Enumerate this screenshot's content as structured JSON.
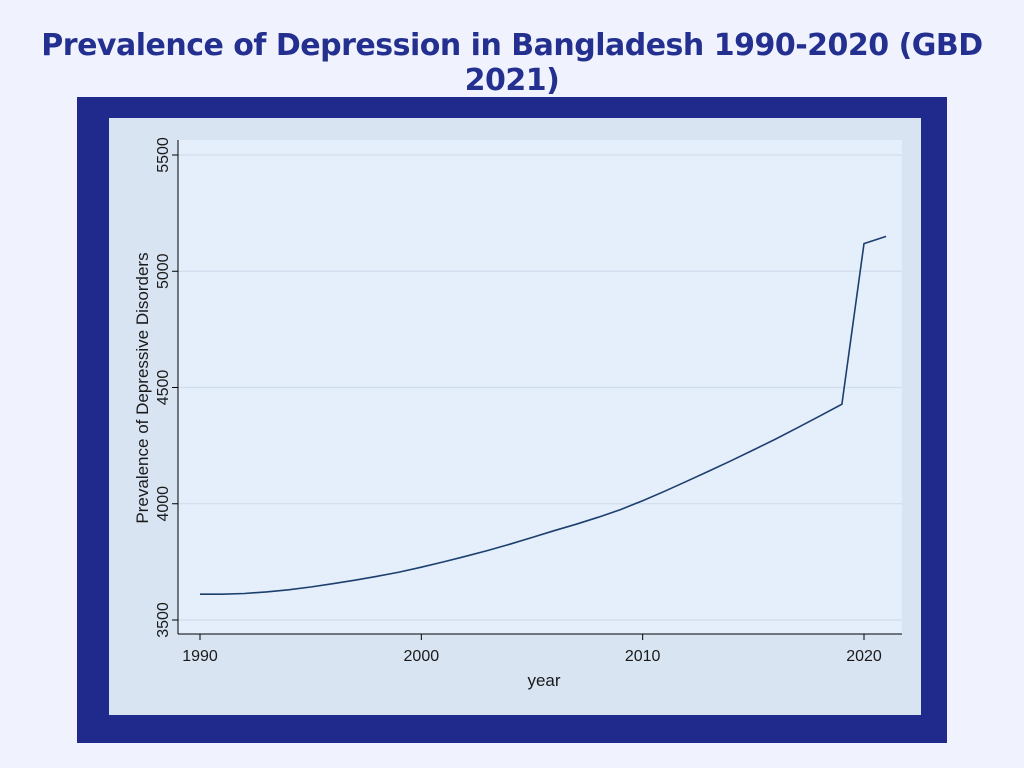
{
  "colors": {
    "page_background": "#f0f2fd",
    "title": "#23308f",
    "frame": "#1f2a8c",
    "graph_region": "#d9e4f3",
    "plot_region": "#e5effb",
    "gridline": "#d0dded",
    "line": "#1c3f6e"
  },
  "chart_data": {
    "type": "line",
    "title": "Prevalence of Depression in Bangladesh 1990-2020 (GBD 2021)",
    "xlabel": "year",
    "ylabel": "Prevalence of Depressive Disorders",
    "xlim": [
      1990,
      2021
    ],
    "ylim": [
      3500,
      5500
    ],
    "x_ticks": [
      1990,
      2000,
      2010,
      2020
    ],
    "y_ticks": [
      3500,
      4000,
      4500,
      5000,
      5500
    ],
    "grid": true,
    "legend": "none",
    "series": [
      {
        "x": [
          1990,
          1991,
          1992,
          1993,
          1994,
          1995,
          1996,
          1997,
          1998,
          1999,
          2000,
          2001,
          2002,
          2003,
          2004,
          2005,
          2006,
          2007,
          2008,
          2009,
          2010,
          2011,
          2012,
          2013,
          2014,
          2015,
          2016,
          2017,
          2018,
          2019,
          2020,
          2021
        ],
        "values": [
          3611,
          3611,
          3614,
          3621,
          3630,
          3642,
          3656,
          3671,
          3688,
          3706,
          3727,
          3750,
          3774,
          3799,
          3826,
          3855,
          3884,
          3912,
          3942,
          3975,
          4013,
          4054,
          4097,
          4141,
          4185,
          4231,
          4278,
          4327,
          4377,
          4428,
          5119,
          5150
        ]
      }
    ]
  }
}
